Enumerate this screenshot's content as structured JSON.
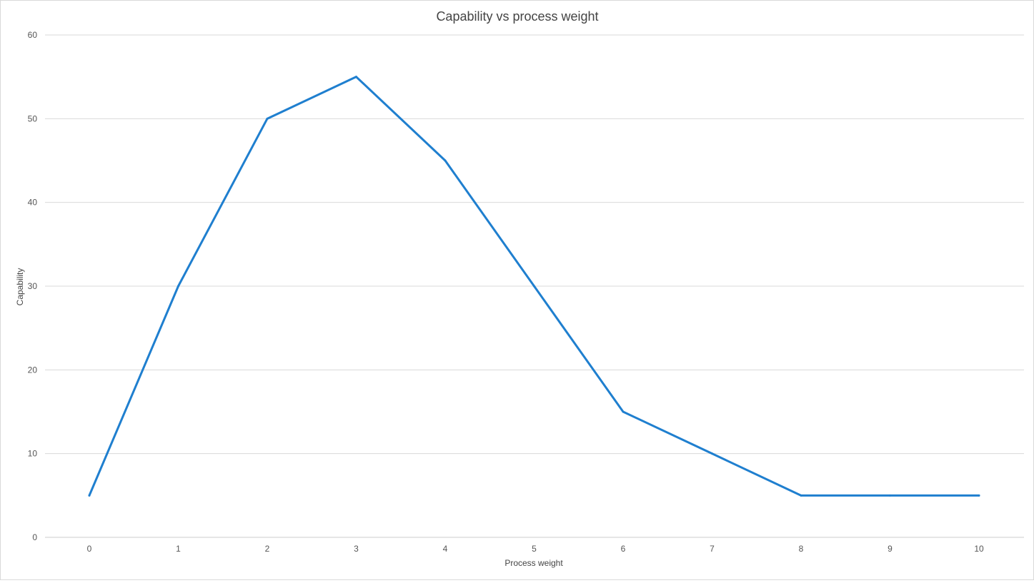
{
  "chart_data": {
    "type": "line",
    "title": "Capability vs process weight",
    "xlabel": "Process weight",
    "ylabel": "Capability",
    "x": [
      0,
      1,
      2,
      3,
      4,
      5,
      6,
      7,
      8,
      9,
      10
    ],
    "series": [
      {
        "values": [
          5,
          30,
          50,
          55,
          45,
          30,
          15,
          10,
          5,
          5,
          5
        ]
      }
    ],
    "ylim": [
      0,
      60
    ],
    "yticks": [
      0,
      10,
      20,
      30,
      40,
      50,
      60
    ],
    "xticks": [
      0,
      1,
      2,
      3,
      4,
      5,
      6,
      7,
      8,
      9,
      10
    ],
    "grid": "horizontal",
    "legend": "none",
    "colors": {
      "series": "#1f7fcf"
    }
  }
}
